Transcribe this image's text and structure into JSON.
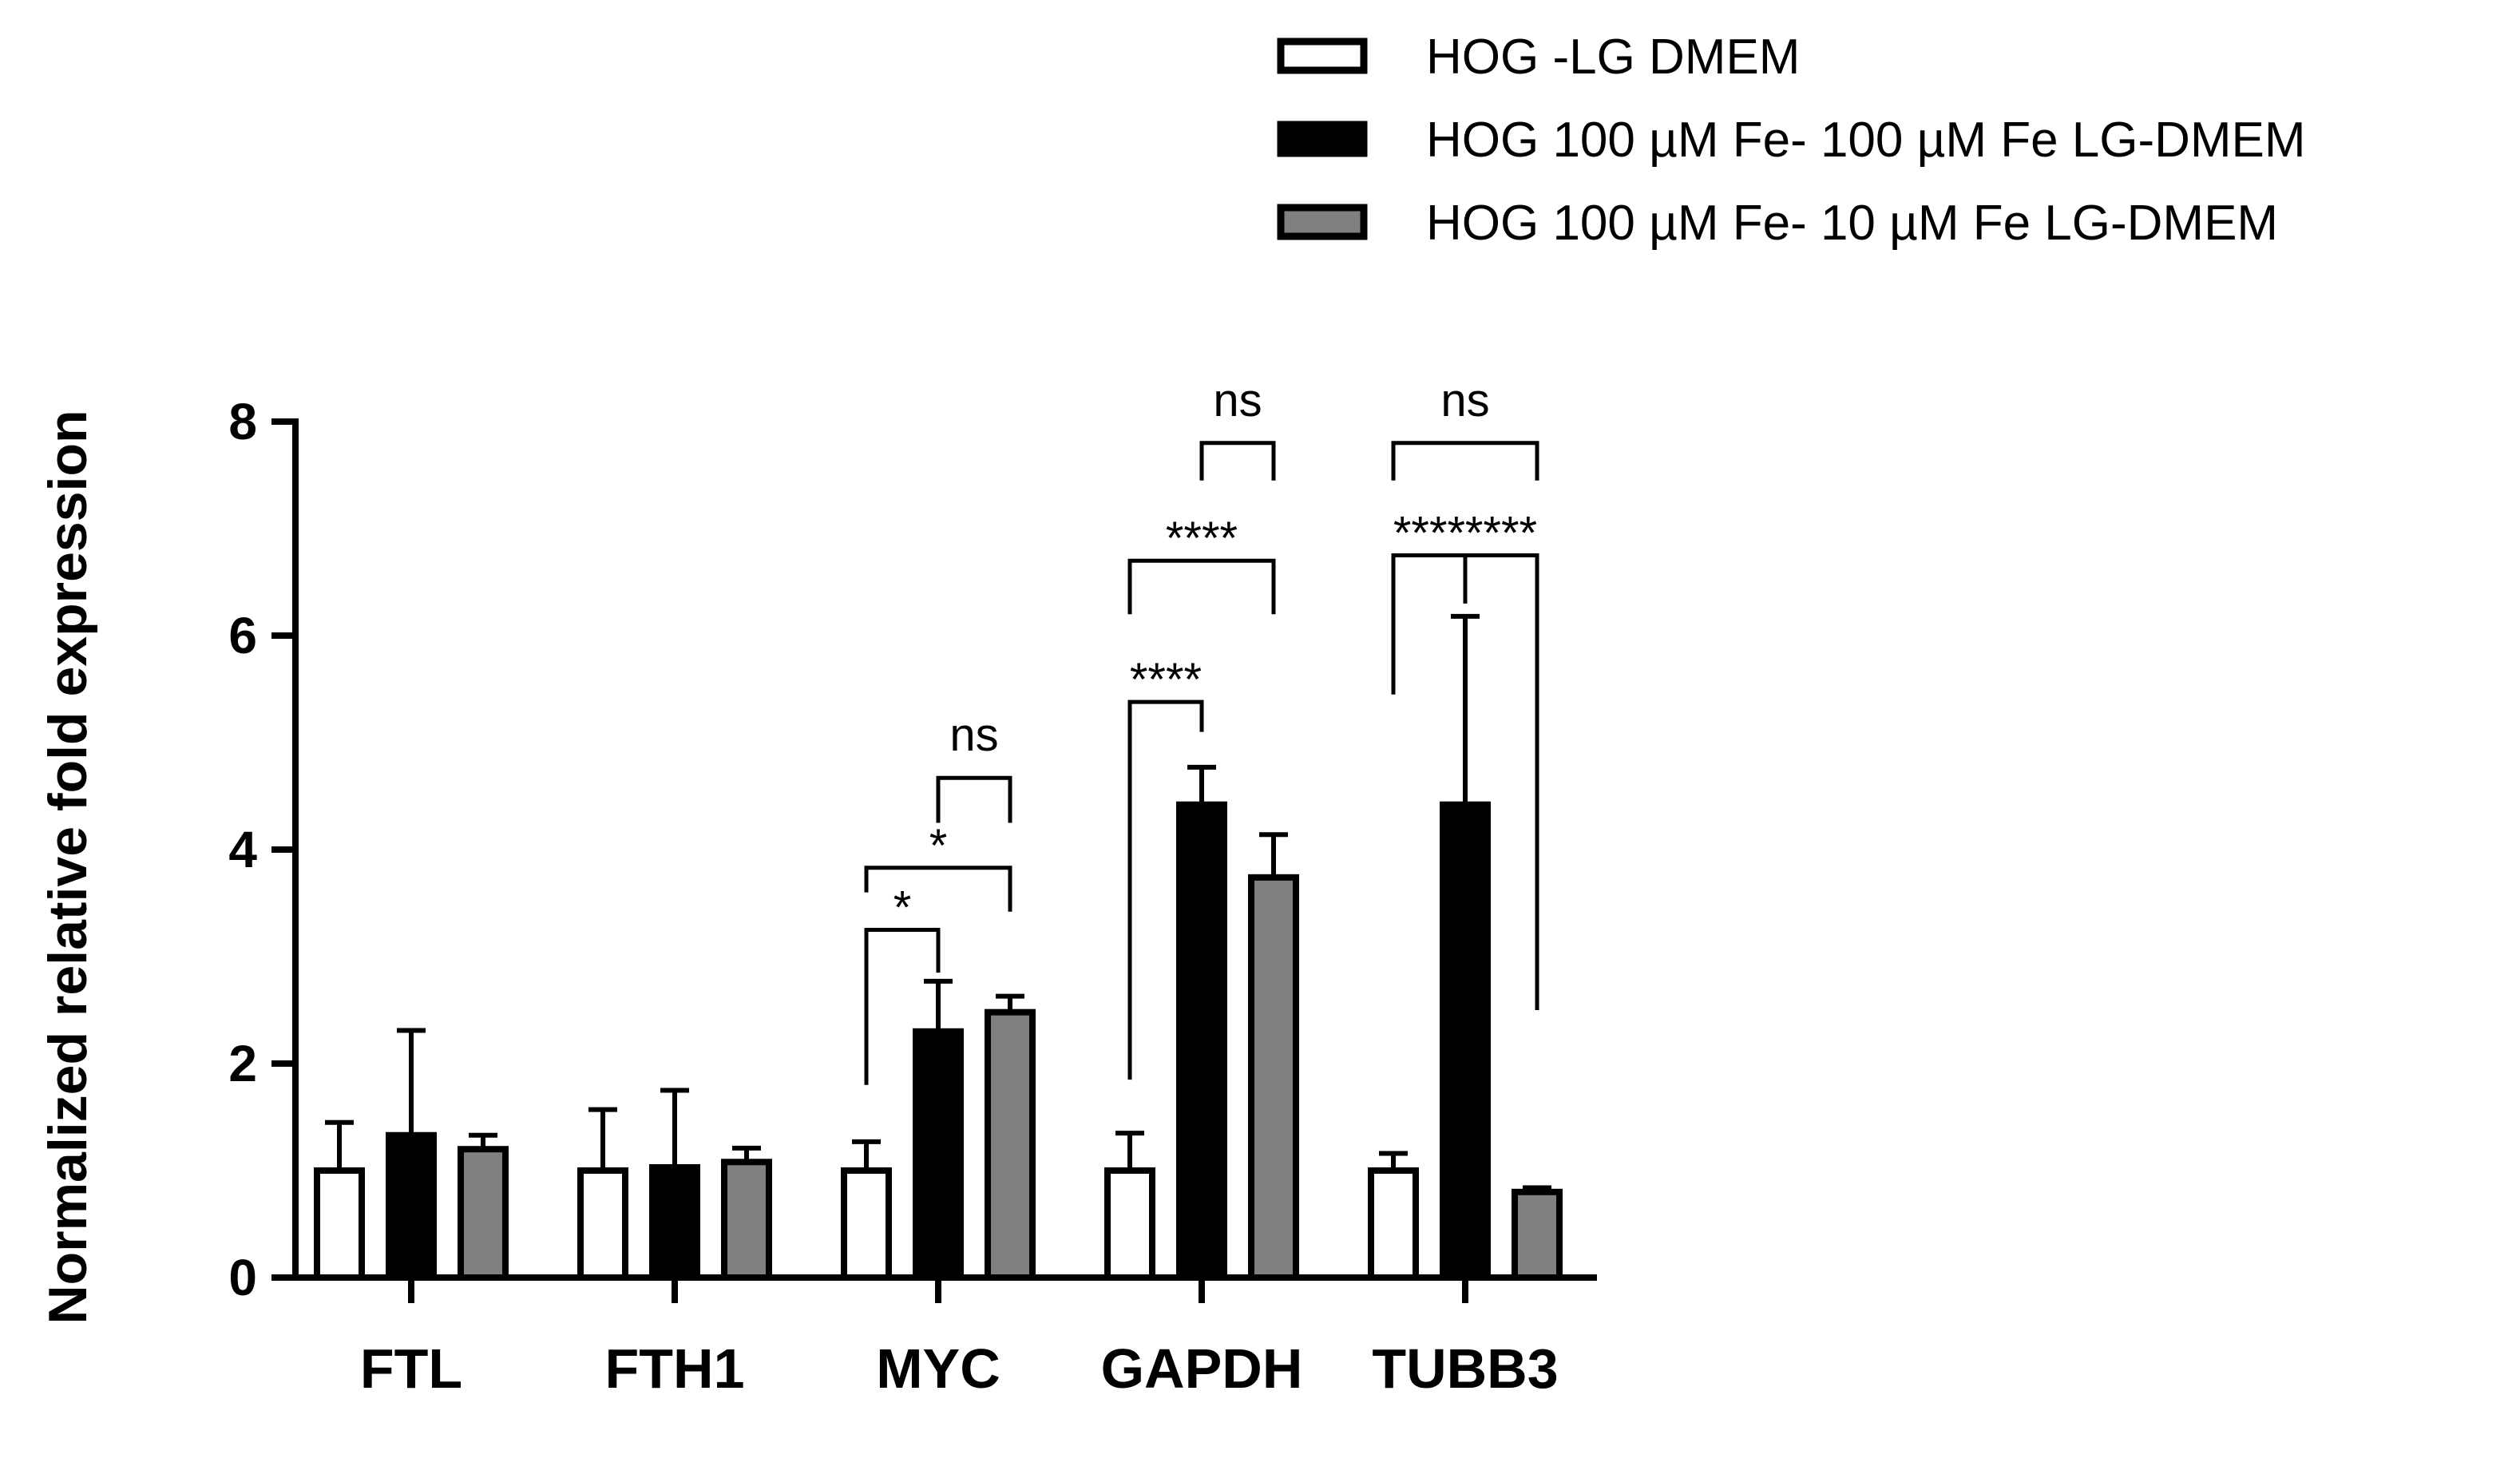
{
  "chart_data": {
    "type": "bar",
    "ylabel": "Normalized relative fold expression",
    "xlabel": "",
    "ylim": [
      0,
      8
    ],
    "yticks": [
      0,
      2,
      4,
      6,
      8
    ],
    "categories": [
      "FTL",
      "FTH1",
      "MYC",
      "GAPDH",
      "TUBB3"
    ],
    "legend_position": "top-right",
    "series": [
      {
        "name": "HOG -LG DMEM",
        "color": "#ffffff",
        "values": [
          1.0,
          1.0,
          1.0,
          1.0,
          1.0
        ],
        "errors": [
          0.45,
          0.57,
          0.27,
          0.35,
          0.16
        ]
      },
      {
        "name": "HOG 100 µM Fe- 100 µM Fe LG-DMEM",
        "color": "#000000",
        "values": [
          1.33,
          1.03,
          2.3,
          4.42,
          4.42
        ],
        "errors": [
          0.98,
          0.72,
          0.47,
          0.35,
          1.76
        ]
      },
      {
        "name": "HOG 100 µM Fe- 10 µM Fe LG-DMEM",
        "color": "#808080",
        "values": [
          1.2,
          1.08,
          2.48,
          3.74,
          0.8
        ],
        "errors": [
          0.13,
          0.13,
          0.15,
          0.4,
          0.04
        ]
      }
    ],
    "significance": [
      {
        "category": "MYC",
        "from_series": 0,
        "to_series": 1,
        "label": "*",
        "bracket_y": 3.25,
        "left_y": 1.8,
        "right_y": 2.85
      },
      {
        "category": "MYC",
        "from_series": 0,
        "to_series": 2,
        "label": "*",
        "bracket_y": 3.83,
        "left_y": 3.6,
        "right_y": 3.42
      },
      {
        "category": "MYC",
        "from_series": 1,
        "to_series": 2,
        "label": "ns",
        "bracket_y": 4.67,
        "left_y": 4.25,
        "right_y": 4.25
      },
      {
        "category": "GAPDH",
        "from_series": 0,
        "to_series": 1,
        "label": "****",
        "bracket_y": 5.38,
        "left_y": 1.85,
        "right_y": 5.1
      },
      {
        "category": "GAPDH",
        "from_series": 0,
        "to_series": 2,
        "label": "****",
        "bracket_y": 6.7,
        "left_y": 6.2,
        "right_y": 6.2
      },
      {
        "category": "GAPDH",
        "from_series": 1,
        "to_series": 2,
        "label": "ns",
        "bracket_y": 7.8,
        "left_y": 7.45,
        "right_y": 7.45
      },
      {
        "category": "TUBB3",
        "from_series": 0,
        "to_series": 1,
        "label": "****",
        "bracket_y": 6.75,
        "left_y": 5.45,
        "right_y": 6.3
      },
      {
        "category": "TUBB3",
        "from_series": 1,
        "to_series": 2,
        "label": "****",
        "bracket_y": 6.75,
        "left_y": 6.3,
        "right_y": 2.5
      },
      {
        "category": "TUBB3",
        "from_series": 0,
        "to_series": 2,
        "label": "ns",
        "bracket_y": 7.8,
        "left_y": 7.45,
        "right_y": 7.45
      }
    ]
  }
}
